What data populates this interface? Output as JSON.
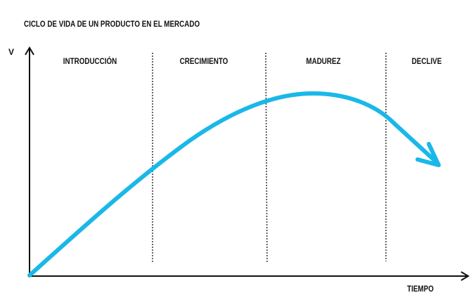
{
  "title": "CICLO DE VIDA DE UN PRODUCTO EN EL MERCADO",
  "axes": {
    "y": "V",
    "x": "TIEMPO"
  },
  "stages": [
    "INTRODUCCIÓN",
    "CRECIMIENTO",
    "MADUREZ",
    "DECLIVE"
  ]
}
